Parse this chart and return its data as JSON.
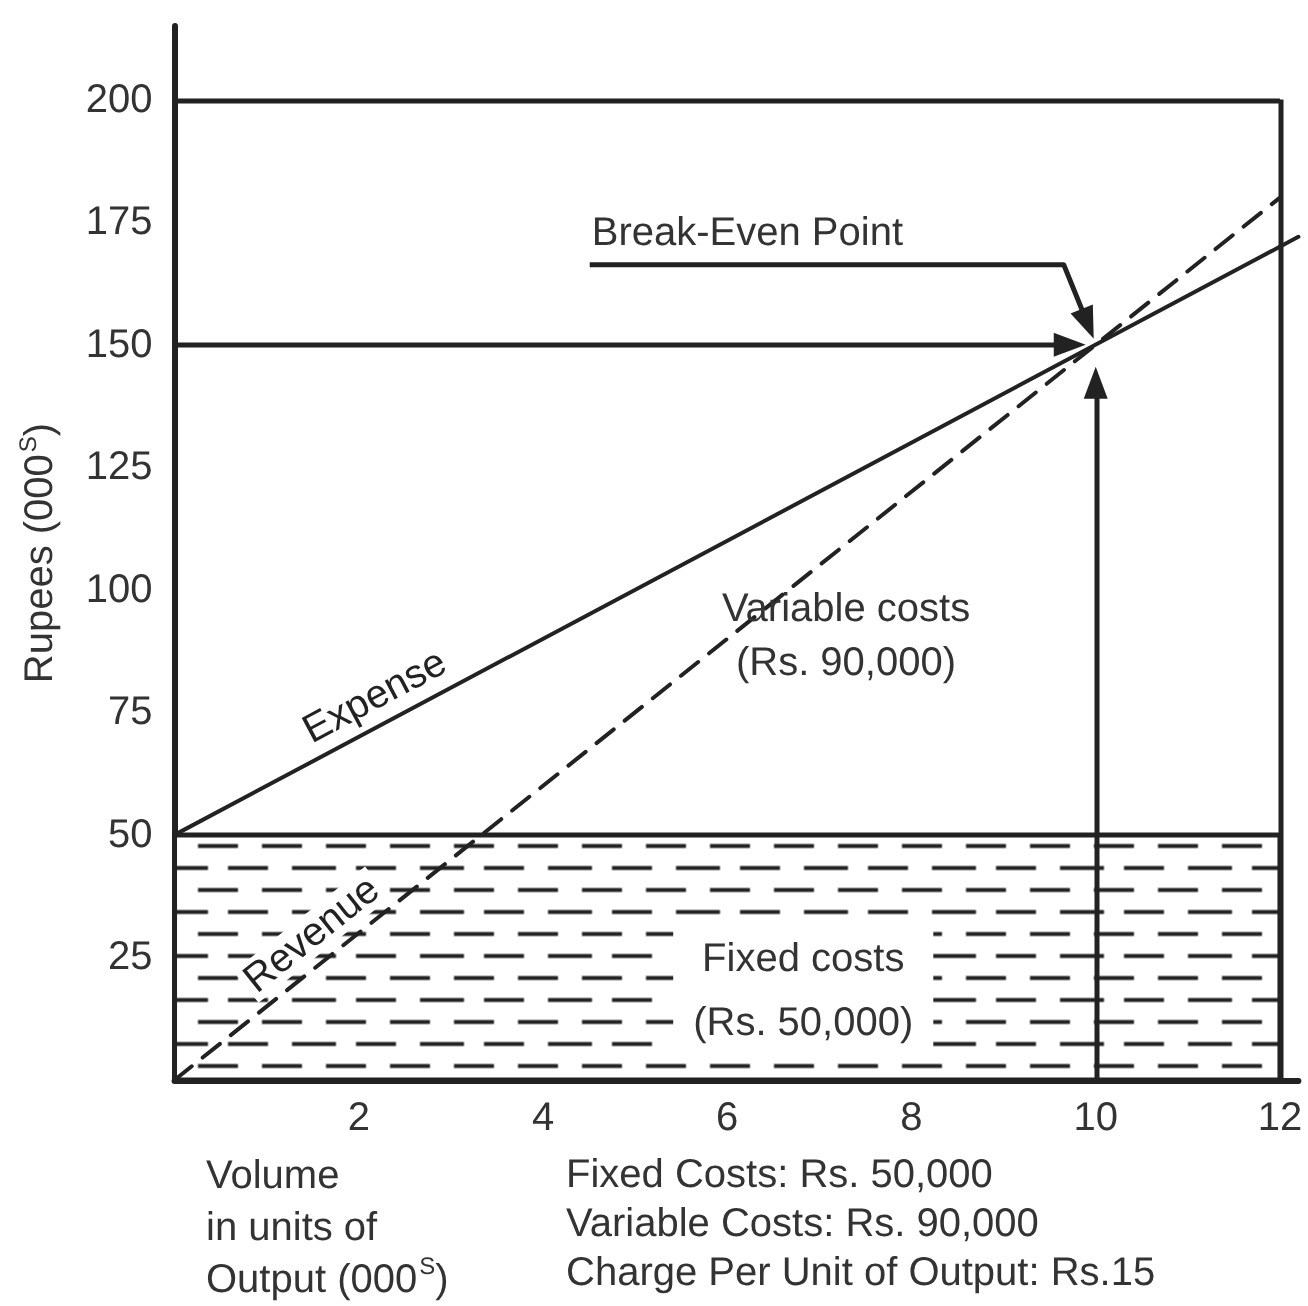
{
  "chart_data": {
    "type": "line",
    "xlabel": "Volume\nin units of\nOutput (000$^{S}$)",
    "ylabel": "Rupees (000$^{S}$)",
    "series": [
      {
        "name": "Expense",
        "color": "#222222",
        "x": [
          0,
          12.2
        ],
        "values": [
          50,
          172
        ],
        "line_style": "solid"
      },
      {
        "name": "Revenue",
        "color": "#222222",
        "x": [
          0,
          12
        ],
        "values": [
          0,
          180
        ],
        "line_style": "dashed"
      }
    ],
    "xlim": [
      0,
      12.2
    ],
    "xticks": [
      2,
      4,
      6,
      8,
      10,
      12
    ],
    "ylim": [
      0,
      215
    ],
    "yticks": [
      25,
      50,
      75,
      100,
      125,
      150,
      175,
      200
    ],
    "marker": "none",
    "grid": false,
    "ref_lines": [
      {
        "axis": "y",
        "value": 200
      },
      {
        "axis": "x",
        "value": 12
      },
      {
        "axis": "y",
        "value": 150
      },
      {
        "axis": "x",
        "value": 10
      }
    ],
    "bands": [
      {
        "axis": "y",
        "from": 0,
        "to": 50,
        "label": "Fixed costs\n(Rs. 50,000)"
      }
    ],
    "annotations": [
      {
        "text": "Break-Even Point",
        "x": 10,
        "y": 150
      },
      "Variable costs\n(Rs. 90,000)",
      "Fixed Costs: Rs. 50,000\nVariable Costs: Rs. 90,000\nCharge Per Unit of Output: Rs.15"
    ]
  }
}
